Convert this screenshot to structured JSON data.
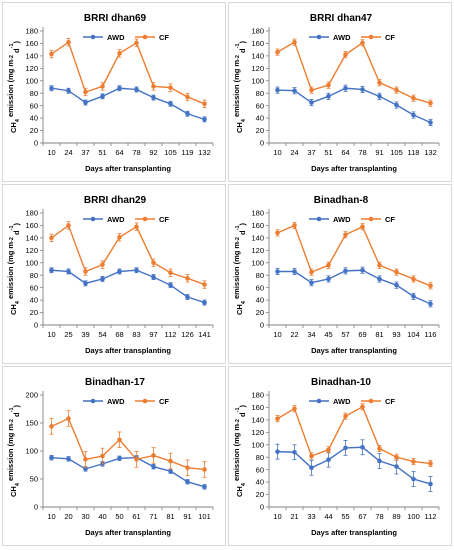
{
  "colors": {
    "awd": "#4472C4",
    "cf": "#ED7D31"
  },
  "chart_data": [
    {
      "type": "line",
      "title": "BRRI dhan69",
      "xlabel": "Days after transplanting",
      "ylabel": "CH4 emission (mg m-2 d-1)",
      "ylabel_parts": [
        "CH",
        "4",
        " emission (mg m",
        "-2",
        " d",
        "-1",
        ")"
      ],
      "ylim": [
        0,
        180
      ],
      "yticks": [
        "0",
        "20",
        "40",
        "60",
        "80",
        "100",
        "120",
        "140",
        "160",
        "180"
      ],
      "categories": [
        "10",
        "24",
        "37",
        "51",
        "64",
        "78",
        "92",
        "105",
        "119",
        "132"
      ],
      "legend": "top-center",
      "series": [
        {
          "name": "AWD",
          "values": [
            88,
            84,
            65,
            75,
            88,
            86,
            73,
            63,
            47,
            38
          ],
          "errors": [
            4,
            4,
            4,
            4,
            4,
            4,
            4,
            4,
            4,
            4
          ]
        },
        {
          "name": "CF",
          "values": [
            143,
            162,
            82,
            91,
            144,
            161,
            91,
            89,
            74,
            63
          ],
          "errors": [
            6,
            6,
            6,
            6,
            6,
            6,
            6,
            6,
            6,
            6
          ]
        }
      ]
    },
    {
      "type": "line",
      "title": "BRRI dhan47",
      "xlabel": "Days after transplanting",
      "ylabel": "CH4 emission (mg m-2 d-1)",
      "ylabel_parts": [
        "CH",
        "4",
        " emission (mg m",
        "-2",
        " d",
        "-1",
        ")"
      ],
      "ylim": [
        0,
        180
      ],
      "yticks": [
        "0",
        "20",
        "40",
        "60",
        "80",
        "100",
        "120",
        "140",
        "160",
        "180"
      ],
      "categories": [
        "10",
        "24",
        "37",
        "51",
        "64",
        "78",
        "91",
        "105",
        "118",
        "132"
      ],
      "legend": "top-center",
      "series": [
        {
          "name": "AWD",
          "values": [
            85,
            84,
            65,
            75,
            88,
            86,
            75,
            61,
            45,
            33
          ],
          "errors": [
            5,
            5,
            5,
            5,
            5,
            5,
            5,
            5,
            5,
            5
          ]
        },
        {
          "name": "CF",
          "values": [
            146,
            162,
            85,
            93,
            142,
            161,
            97,
            85,
            72,
            64
          ],
          "errors": [
            5,
            5,
            5,
            5,
            5,
            5,
            5,
            5,
            5,
            5
          ]
        }
      ]
    },
    {
      "type": "line",
      "title": "BRRI dhan29",
      "xlabel": "Days after transplanting",
      "ylabel": "CH4 emission (mg m-2 d-1)",
      "ylabel_parts": [
        "CH",
        "4",
        " emission (mg m",
        "-2",
        " d",
        "-1",
        ")"
      ],
      "ylim": [
        0,
        180
      ],
      "yticks": [
        "0",
        "20",
        "40",
        "60",
        "80",
        "100",
        "120",
        "140",
        "160",
        "180"
      ],
      "categories": [
        "10",
        "25",
        "39",
        "54",
        "68",
        "83",
        "97",
        "112",
        "126",
        "141"
      ],
      "legend": "top-center",
      "series": [
        {
          "name": "AWD",
          "values": [
            88,
            86,
            67,
            74,
            86,
            88,
            77,
            64,
            45,
            36
          ],
          "errors": [
            4,
            4,
            4,
            4,
            4,
            4,
            4,
            4,
            4,
            4
          ]
        },
        {
          "name": "CF",
          "values": [
            140,
            160,
            86,
            97,
            141,
            158,
            100,
            84,
            75,
            65
          ],
          "errors": [
            6,
            6,
            6,
            6,
            6,
            6,
            6,
            6,
            6,
            6
          ]
        }
      ]
    },
    {
      "type": "line",
      "title": "Binadhan-8",
      "xlabel": "Days after transplanting",
      "ylabel": "CH4 emission (mg m-2 d-1)",
      "ylabel_parts": [
        "CH",
        "4",
        " emission (mg m",
        "-2",
        " d",
        "-1",
        ")"
      ],
      "ylim": [
        0,
        180
      ],
      "yticks": [
        "0",
        "20",
        "40",
        "60",
        "80",
        "100",
        "120",
        "140",
        "160",
        "180"
      ],
      "categories": [
        "10",
        "22",
        "34",
        "45",
        "57",
        "69",
        "81",
        "93",
        "104",
        "116"
      ],
      "legend": "top-center",
      "series": [
        {
          "name": "AWD",
          "values": [
            86,
            86,
            68,
            74,
            87,
            88,
            74,
            64,
            46,
            34
          ],
          "errors": [
            5,
            5,
            5,
            5,
            5,
            5,
            5,
            5,
            5,
            5
          ]
        },
        {
          "name": "CF",
          "values": [
            148,
            160,
            85,
            96,
            145,
            158,
            96,
            85,
            74,
            63
          ],
          "errors": [
            5,
            5,
            5,
            5,
            5,
            5,
            5,
            5,
            5,
            5
          ]
        }
      ]
    },
    {
      "type": "line",
      "title": "Binadhan-17",
      "xlabel": "Days after transplanting",
      "ylabel": "CH4 emission (mg m-2 d-1)",
      "ylabel_parts": [
        "CH",
        "4",
        " emission (mg m",
        "-2",
        " d",
        "-1",
        ")"
      ],
      "ylim": [
        0,
        200
      ],
      "yticks": [
        "0",
        "50",
        "100",
        "150",
        "200"
      ],
      "categories": [
        "10",
        "20",
        "30",
        "40",
        "50",
        "61",
        "71",
        "81",
        "91",
        "101"
      ],
      "legend": "top-center",
      "series": [
        {
          "name": "AWD",
          "values": [
            88,
            86,
            68,
            77,
            87,
            88,
            72,
            64,
            45,
            36
          ],
          "errors": [
            4,
            4,
            4,
            4,
            4,
            4,
            4,
            4,
            4,
            4
          ]
        },
        {
          "name": "CF",
          "values": [
            144,
            158,
            85,
            91,
            120,
            85,
            92,
            82,
            70,
            67
          ],
          "errors": [
            14,
            14,
            14,
            14,
            14,
            14,
            14,
            14,
            14,
            14
          ]
        }
      ]
    },
    {
      "type": "line",
      "title": "Binadhan-10",
      "xlabel": "Days after transplanting",
      "ylabel": "CH4 emission (mg m-2 d-1)",
      "ylabel_parts": [
        "CH",
        "4",
        " emission (mg m",
        "-2",
        " d",
        "-1",
        ")"
      ],
      "ylim": [
        0,
        180
      ],
      "yticks": [
        "0",
        "20",
        "40",
        "60",
        "80",
        "100",
        "120",
        "140",
        "160",
        "180"
      ],
      "categories": [
        "10",
        "21",
        "33",
        "44",
        "55",
        "67",
        "78",
        "89",
        "100",
        "112"
      ],
      "legend": "top-center",
      "series": [
        {
          "name": "AWD",
          "values": [
            89,
            88,
            63,
            76,
            95,
            96,
            74,
            65,
            45,
            37
          ],
          "errors": [
            12,
            12,
            12,
            12,
            12,
            12,
            12,
            12,
            12,
            12
          ]
        },
        {
          "name": "CF",
          "values": [
            142,
            158,
            82,
            92,
            146,
            161,
            94,
            80,
            73,
            70
          ],
          "errors": [
            5,
            5,
            5,
            5,
            5,
            5,
            5,
            5,
            5,
            5
          ]
        }
      ]
    }
  ]
}
